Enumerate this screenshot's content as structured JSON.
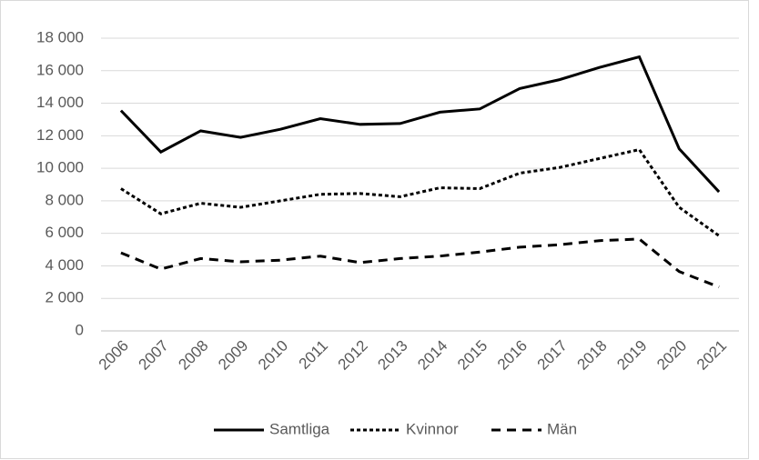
{
  "chart_data": {
    "type": "line",
    "categories": [
      "2006",
      "2007",
      "2008",
      "2009",
      "2010",
      "2011",
      "2012",
      "2013",
      "2014",
      "2015",
      "2016",
      "2017",
      "2018",
      "2019",
      "2020",
      "2021"
    ],
    "series": [
      {
        "name": "Samtliga",
        "color": "#000000",
        "line_style": "solid",
        "values": [
          13550,
          11000,
          12300,
          11900,
          12400,
          13050,
          12700,
          12750,
          13450,
          13650,
          14900,
          15450,
          16200,
          16850,
          11200,
          8550
        ]
      },
      {
        "name": "Kvinnor",
        "color": "#000000",
        "line_style": "dotted",
        "values": [
          8750,
          7200,
          7850,
          7600,
          8000,
          8400,
          8450,
          8250,
          8800,
          8750,
          9700,
          10050,
          10600,
          11150,
          7600,
          5850
        ]
      },
      {
        "name": "Män",
        "color": "#000000",
        "line_style": "dashed",
        "values": [
          4800,
          3800,
          4450,
          4250,
          4350,
          4600,
          4200,
          4450,
          4600,
          4850,
          5150,
          5300,
          5550,
          5650,
          3650,
          2700
        ]
      }
    ],
    "ylim": [
      0,
      18000
    ],
    "yticks": [
      0,
      {
        "value": 2000,
        "label": "2 000"
      },
      {
        "value": 4000,
        "label": "4 000"
      },
      {
        "value": 6000,
        "label": "6 000"
      },
      {
        "value": 8000,
        "label": "8 000"
      },
      {
        "value": 10000,
        "label": "10 000"
      },
      {
        "value": 12000,
        "label": "12 000"
      },
      {
        "value": 14000,
        "label": "14 000"
      },
      {
        "value": 16000,
        "label": "16 000"
      },
      {
        "value": 18000,
        "label": "18 000"
      }
    ],
    "grid": true,
    "legend": "bottom"
  }
}
